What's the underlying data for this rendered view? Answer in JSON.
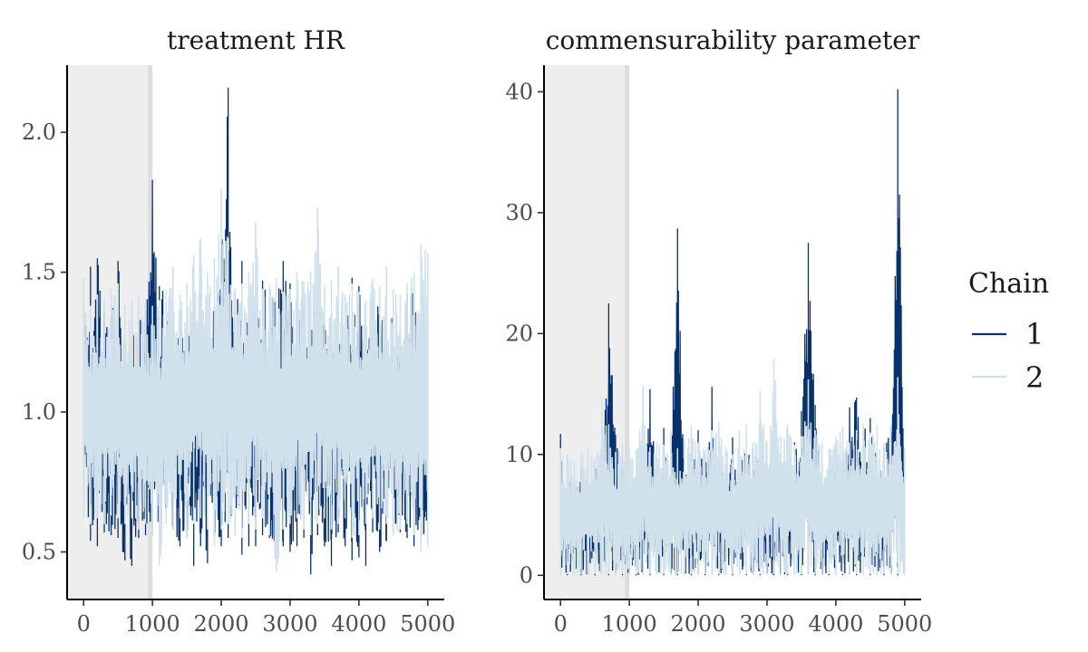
{
  "chart_data": [
    {
      "type": "line",
      "title": "treatment HR",
      "xlabel": "",
      "ylabel": "",
      "xlim": [
        -240,
        5240
      ],
      "ylim": [
        0.33,
        2.24
      ],
      "x_ticks": [
        0,
        1000,
        2000,
        3000,
        4000,
        5000
      ],
      "y_ticks": [
        0.5,
        1.0,
        1.5,
        2.0
      ],
      "y_tick_labels": [
        "0.5",
        "1.0",
        "1.5",
        "2.0"
      ],
      "warmup_range": [
        -240,
        1000
      ],
      "series": [
        {
          "name": "1",
          "color": "#08306b",
          "x": [
            0,
            100,
            200,
            300,
            400,
            500,
            600,
            700,
            800,
            900,
            1000,
            1100,
            1200,
            1300,
            1400,
            1500,
            1600,
            1700,
            1800,
            1900,
            2000,
            2100,
            2200,
            2300,
            2400,
            2500,
            2600,
            2700,
            2800,
            2900,
            3000,
            3100,
            3200,
            3300,
            3400,
            3500,
            3600,
            3700,
            3800,
            3900,
            4000,
            4100,
            4200,
            4300,
            4400,
            4500,
            4600,
            4700,
            4800,
            4900,
            5000
          ],
          "low": [
            0.72,
            0.54,
            0.52,
            0.57,
            0.56,
            0.55,
            0.47,
            0.45,
            0.55,
            0.56,
            0.58,
            0.58,
            0.6,
            0.58,
            0.52,
            0.55,
            0.45,
            0.52,
            0.46,
            0.55,
            0.52,
            0.55,
            0.57,
            0.49,
            0.52,
            0.52,
            0.56,
            0.55,
            0.5,
            0.52,
            0.5,
            0.52,
            0.55,
            0.42,
            0.56,
            0.52,
            0.45,
            0.57,
            0.52,
            0.47,
            0.48,
            0.45,
            0.57,
            0.5,
            0.54,
            0.58,
            0.57,
            0.55,
            0.52,
            0.53,
            0.58
          ],
          "high": [
            1.28,
            1.52,
            1.55,
            1.36,
            1.34,
            1.54,
            1.35,
            1.28,
            1.33,
            1.36,
            1.83,
            1.45,
            1.43,
            1.29,
            1.36,
            1.28,
            1.4,
            1.32,
            1.4,
            1.38,
            1.56,
            2.16,
            1.44,
            1.54,
            1.42,
            1.38,
            1.47,
            1.44,
            1.4,
            1.54,
            1.46,
            1.3,
            1.38,
            1.38,
            1.47,
            1.32,
            1.35,
            1.36,
            1.32,
            1.48,
            1.45,
            1.3,
            1.4,
            1.38,
            1.36,
            1.34,
            1.3,
            1.42,
            1.44,
            1.27,
            1.3
          ]
        },
        {
          "name": "2",
          "color": "#d1e1ec",
          "x": [
            0,
            100,
            200,
            300,
            400,
            500,
            600,
            700,
            800,
            900,
            1000,
            1100,
            1200,
            1300,
            1400,
            1500,
            1600,
            1700,
            1800,
            1900,
            2000,
            2100,
            2200,
            2300,
            2400,
            2500,
            2600,
            2700,
            2800,
            2900,
            3000,
            3100,
            3200,
            3300,
            3400,
            3500,
            3600,
            3700,
            3800,
            3900,
            4000,
            4100,
            4200,
            4300,
            4400,
            4500,
            4600,
            4700,
            4800,
            4900,
            5000
          ],
          "low": [
            0.62,
            0.6,
            0.62,
            0.6,
            0.63,
            0.62,
            0.6,
            0.62,
            0.58,
            0.6,
            0.56,
            0.45,
            0.6,
            0.58,
            0.62,
            0.55,
            0.6,
            0.62,
            0.58,
            0.52,
            0.58,
            0.6,
            0.56,
            0.55,
            0.6,
            0.58,
            0.62,
            0.56,
            0.43,
            0.58,
            0.6,
            0.62,
            0.58,
            0.56,
            0.6,
            0.62,
            0.58,
            0.6,
            0.62,
            0.55,
            0.56,
            0.6,
            0.62,
            0.58,
            0.6,
            0.56,
            0.58,
            0.6,
            0.56,
            0.5,
            0.52
          ],
          "high": [
            1.48,
            1.38,
            1.42,
            1.4,
            1.44,
            1.46,
            1.38,
            1.4,
            1.42,
            1.4,
            1.38,
            1.4,
            1.44,
            1.52,
            1.42,
            1.46,
            1.56,
            1.62,
            1.5,
            1.55,
            1.8,
            1.62,
            1.44,
            1.46,
            1.5,
            1.68,
            1.44,
            1.45,
            1.48,
            1.43,
            1.44,
            1.5,
            1.47,
            1.5,
            1.73,
            1.45,
            1.47,
            1.52,
            1.42,
            1.46,
            1.43,
            1.4,
            1.48,
            1.45,
            1.52,
            1.44,
            1.42,
            1.46,
            1.5,
            1.6,
            1.57
          ]
        }
      ]
    },
    {
      "type": "line",
      "title": "commensurability parameter",
      "xlabel": "",
      "ylabel": "",
      "xlim": [
        -240,
        5240
      ],
      "ylim": [
        -2,
        42.2
      ],
      "x_ticks": [
        0,
        1000,
        2000,
        3000,
        4000,
        5000
      ],
      "y_ticks": [
        0,
        10,
        20,
        30,
        40
      ],
      "y_tick_labels": [
        "0",
        "10",
        "20",
        "30",
        "40"
      ],
      "warmup_range": [
        -240,
        1000
      ],
      "series": [
        {
          "name": "1",
          "color": "#08306b",
          "x": [
            0,
            100,
            200,
            300,
            400,
            500,
            600,
            700,
            800,
            900,
            1000,
            1100,
            1200,
            1300,
            1400,
            1500,
            1600,
            1700,
            1800,
            1900,
            2000,
            2100,
            2200,
            2300,
            2400,
            2500,
            2600,
            2700,
            2800,
            2900,
            3000,
            3100,
            3200,
            3300,
            3400,
            3500,
            3600,
            3700,
            3800,
            3900,
            4000,
            4100,
            4200,
            4300,
            4400,
            4500,
            4600,
            4700,
            4800,
            4900,
            5000
          ],
          "low": [
            0.1,
            0,
            0.1,
            0,
            0.1,
            0,
            0.1,
            0,
            0.1,
            0,
            0.1,
            0,
            0.1,
            0,
            0.1,
            0,
            0.1,
            0,
            0.1,
            0,
            0.1,
            0,
            0.1,
            0,
            0.1,
            0,
            0.1,
            0,
            0.1,
            0,
            0.1,
            0,
            0.1,
            0,
            0.1,
            0,
            0.1,
            0,
            0.1,
            0,
            0.1,
            0,
            0.1,
            0,
            0.1,
            0,
            0.1,
            0,
            0.1,
            0,
            0.1
          ],
          "high": [
            11.7,
            8.5,
            7.8,
            9.0,
            7.5,
            9.5,
            6.5,
            22.5,
            11.6,
            8.8,
            7.0,
            8.7,
            9.5,
            15.4,
            8.0,
            12.2,
            9.0,
            28.7,
            9.2,
            8.0,
            12.0,
            9.5,
            15.6,
            8.5,
            9.2,
            11.4,
            8.3,
            12.0,
            8.5,
            10.8,
            9.2,
            8.0,
            9.5,
            8.0,
            11.0,
            13.6,
            27.5,
            14.1,
            9.0,
            8.3,
            10.8,
            9.5,
            13.9,
            14.7,
            12.0,
            13.0,
            9.5,
            10.5,
            12.3,
            40.2,
            8.3
          ]
        },
        {
          "name": "2",
          "color": "#d1e1ec",
          "x": [
            0,
            100,
            200,
            300,
            400,
            500,
            600,
            700,
            800,
            900,
            1000,
            1100,
            1200,
            1300,
            1400,
            1500,
            1600,
            1700,
            1800,
            1900,
            2000,
            2100,
            2200,
            2300,
            2400,
            2500,
            2600,
            2700,
            2800,
            2900,
            3000,
            3100,
            3200,
            3300,
            3400,
            3500,
            3600,
            3700,
            3800,
            3900,
            4000,
            4100,
            4200,
            4300,
            4400,
            4500,
            4600,
            4700,
            4800,
            4900,
            5000
          ],
          "low": [
            0,
            0.1,
            0,
            0.1,
            0,
            0.1,
            0,
            0.1,
            0,
            0.1,
            0,
            0.1,
            0,
            0.1,
            0,
            0.1,
            0,
            0.1,
            0,
            0.1,
            0,
            0.1,
            0,
            0.1,
            0,
            0.1,
            0,
            0.1,
            0,
            0.1,
            0,
            0.1,
            0,
            0.1,
            0,
            0.1,
            0,
            0.1,
            0,
            0.1,
            0,
            0.1,
            0,
            0.1,
            0,
            0.1,
            0,
            0.1,
            0,
            0.1,
            0
          ],
          "high": [
            10.5,
            10.0,
            9.5,
            10.2,
            10.5,
            9.8,
            14.6,
            12.5,
            10.2,
            11.0,
            10.5,
            10.3,
            15.7,
            10.6,
            11.0,
            10.8,
            12.0,
            10.5,
            11.2,
            12.4,
            11.0,
            10.4,
            12.0,
            12.7,
            10.6,
            10.0,
            12.0,
            12.5,
            11.0,
            15.3,
            11.0,
            17.9,
            11.5,
            12.5,
            10.8,
            11.5,
            16.2,
            12.0,
            11.0,
            10.5,
            11.5,
            12.3,
            11.0,
            12.0,
            12.5,
            11.8,
            12.4,
            11.0,
            12.4,
            16.4,
            10.5
          ]
        }
      ]
    }
  ],
  "legend": {
    "title": "Chain",
    "entries": [
      {
        "label": "1",
        "color": "#08306b"
      },
      {
        "label": "2",
        "color": "#d1e1ec"
      }
    ]
  },
  "warmup_color": "#eeeeee",
  "warmup_edge_color": "#dddddd"
}
